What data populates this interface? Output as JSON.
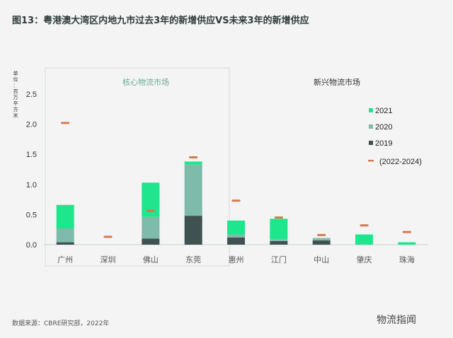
{
  "title": "图13：粤港澳大湾区内地九市过去3年的新增供应VS未来3年的新增供应",
  "source": "数据来源：CBRE研究部，2022年",
  "brand": "物流指闻",
  "chart_data": {
    "type": "bar",
    "stacked": true,
    "ylabel": "单位：百万平方米",
    "ylim": [
      0,
      2.5
    ],
    "yticks": [
      "0.0",
      "0.5",
      "1.0",
      "1.5",
      "2.0",
      "2.5"
    ],
    "group_labels": [
      "核心物流市场",
      "新兴物流市场"
    ],
    "categories": [
      "广州",
      "深圳",
      "佛山",
      "东莞",
      "惠州",
      "江门",
      "中山",
      "肇庆",
      "珠海"
    ],
    "series": [
      {
        "name": "2019",
        "color": "#3f5151",
        "values": [
          0.04,
          0,
          0.1,
          0.48,
          0.12,
          0.06,
          0.07,
          0,
          0
        ]
      },
      {
        "name": "2020",
        "color": "#7fbbaa",
        "values": [
          0.23,
          0,
          0.36,
          0.85,
          0.05,
          0.03,
          0.04,
          0,
          0
        ]
      },
      {
        "name": "2021",
        "color": "#1ee68c",
        "values": [
          0.39,
          0,
          0.57,
          0.05,
          0.23,
          0.34,
          0,
          0.17,
          0.04
        ]
      }
    ],
    "markers": {
      "name": "(2022-2024)",
      "color": "#d27a50",
      "values": [
        2.02,
        0.13,
        0.56,
        1.45,
        0.73,
        0.45,
        0.16,
        0.32,
        0.21
      ]
    },
    "legend_position": "right"
  }
}
